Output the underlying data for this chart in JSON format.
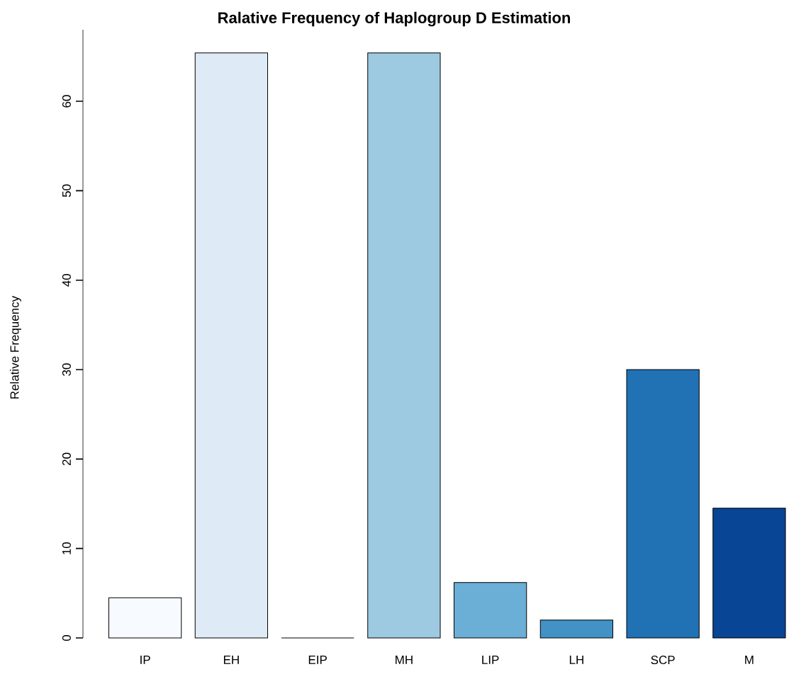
{
  "chart_data": {
    "type": "bar",
    "title": "Ralative Frequency of Haplogroup D Estimation",
    "ylabel": "Relative Frequency",
    "categories": [
      "IP",
      "EH",
      "EIP",
      "MH",
      "LIP",
      "LH",
      "SCP",
      "M"
    ],
    "values": [
      4.5,
      65.4,
      0,
      65.4,
      6.2,
      2,
      30,
      14.5
    ],
    "colors": [
      "#f7fbff",
      "#deebf7",
      "#c6dbef",
      "#9ecae1",
      "#6baed6",
      "#4292c6",
      "#2171b5",
      "#084594"
    ],
    "ylim": [
      0,
      68
    ],
    "yticks": [
      0,
      10,
      20,
      30,
      40,
      50,
      60
    ]
  }
}
